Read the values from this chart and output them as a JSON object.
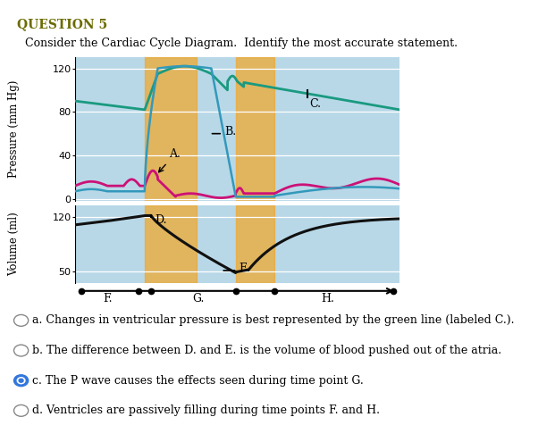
{
  "title_question": "QUESTION 5",
  "title_sub": "Consider the Cardiac Cycle Diagram.  Identify the most accurate statement.",
  "bg_color": "#b8d8e8",
  "orange_color": "#f0a830",
  "orange_alpha": 0.75,
  "orange_band1": [
    0.215,
    0.375
  ],
  "orange_band2": [
    0.495,
    0.615
  ],
  "pressure_ylim": [
    -2,
    130
  ],
  "pressure_yticks": [
    0,
    40,
    80,
    120
  ],
  "volume_ylim": [
    35,
    135
  ],
  "volume_yticks": [
    50,
    120
  ],
  "timeline_dots": [
    0.02,
    0.195,
    0.235,
    0.495,
    0.615,
    0.98
  ],
  "timeline_labels": [
    [
      "F.",
      0.1
    ],
    [
      "G.",
      0.38
    ],
    [
      "H.",
      0.78
    ]
  ],
  "answers": [
    "a. Changes in ventricular pressure is best represented by the green line (labeled C.).",
    "b. The difference between D. and E. is the volume of blood pushed out of the atria.",
    "c. The P wave causes the effects seen during time point G.",
    "d. Ventricles are passively filling during time points F. and H."
  ],
  "selected_answer": 2,
  "color_aortic": "#1a9a80",
  "color_atrial": "#cc1177",
  "color_ventricular": "#3399bb",
  "color_volume": "#111111",
  "color_question": "#6b6b00",
  "font_size_title": 10,
  "font_size_sub": 9,
  "font_size_axis": 8,
  "font_size_label": 9,
  "font_size_answer": 9
}
